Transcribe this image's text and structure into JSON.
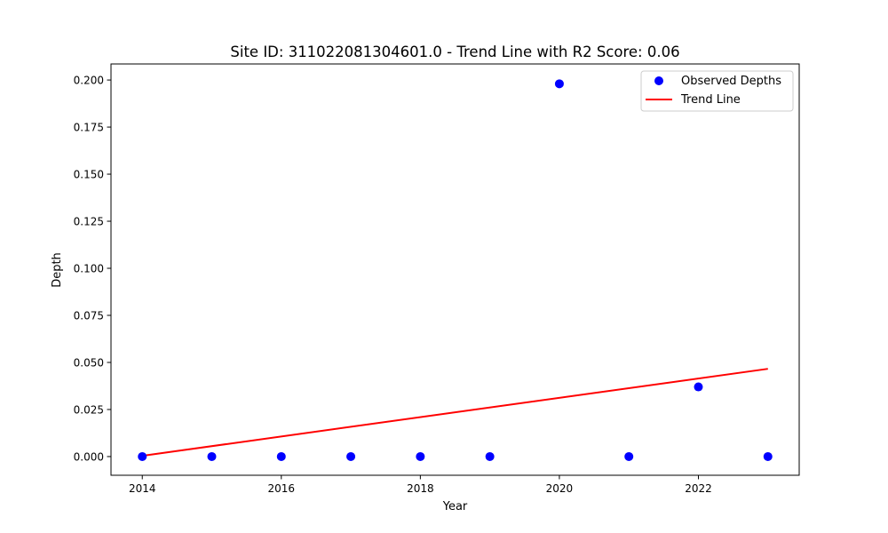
{
  "chart_data": {
    "type": "scatter",
    "title": "Site ID: 311022081304601.0 - Trend Line with R2 Score: 0.06",
    "xlabel": "Year",
    "ylabel": "Depth",
    "xlim": [
      2013.55,
      2023.45
    ],
    "ylim": [
      -0.00993,
      0.20853
    ],
    "xticks": [
      2014,
      2016,
      2018,
      2020,
      2022
    ],
    "xtick_labels": [
      "2014",
      "2016",
      "2018",
      "2020",
      "2022"
    ],
    "yticks": [
      0.0,
      0.025,
      0.05,
      0.075,
      0.1,
      0.125,
      0.15,
      0.175,
      0.2
    ],
    "ytick_labels": [
      "0.000",
      "0.025",
      "0.050",
      "0.075",
      "0.100",
      "0.125",
      "0.150",
      "0.175",
      "0.200"
    ],
    "grid": false,
    "legend_position": "top-right",
    "series": [
      {
        "name": "Observed Depths",
        "kind": "scatter",
        "color": "#0000ff",
        "x": [
          2014,
          2015,
          2016,
          2017,
          2018,
          2019,
          2020,
          2021,
          2022,
          2023
        ],
        "y": [
          0.0,
          0.0,
          0.0,
          0.0,
          0.0,
          0.0,
          0.198,
          0.0,
          0.037,
          0.0
        ]
      },
      {
        "name": "Trend Line",
        "kind": "line",
        "color": "#ff0000",
        "x": [
          2014,
          2023
        ],
        "y": [
          0.0004,
          0.0466
        ]
      }
    ]
  }
}
